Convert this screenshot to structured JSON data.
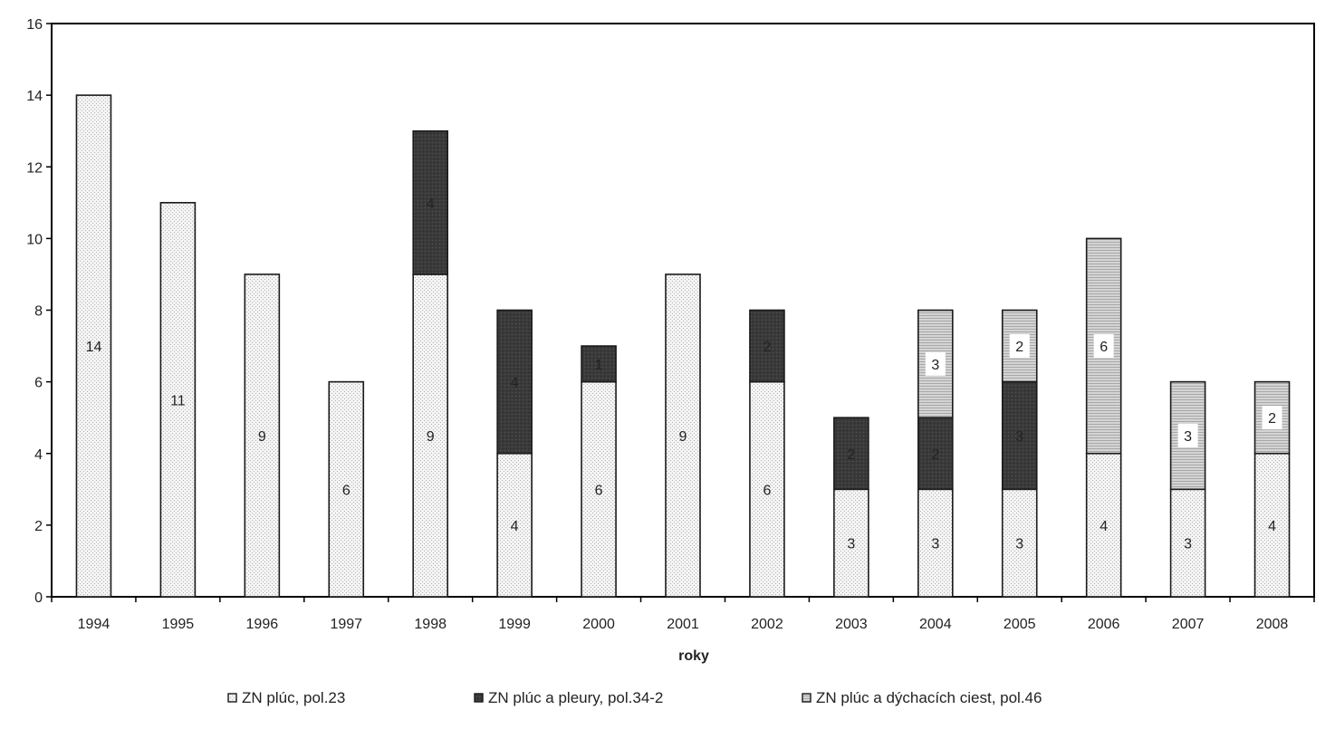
{
  "chart_data": {
    "type": "bar",
    "stacked": true,
    "categories": [
      "1994",
      "1995",
      "1996",
      "1997",
      "1998",
      "1999",
      "2000",
      "2001",
      "2002",
      "2003",
      "2004",
      "2005",
      "2006",
      "2007",
      "2008"
    ],
    "series": [
      {
        "name": "ZN plúc, pol.23",
        "values": [
          14,
          11,
          9,
          6,
          9,
          4,
          6,
          9,
          6,
          3,
          3,
          3,
          4,
          3,
          4
        ],
        "color": "#eeeeee",
        "pattern": "dotted"
      },
      {
        "name": "ZN plúc a pleury, pol.34-2",
        "values": [
          0,
          0,
          0,
          0,
          4,
          4,
          1,
          0,
          2,
          2,
          2,
          3,
          0,
          0,
          0
        ],
        "color": "#3a3a3a",
        "pattern": "dark"
      },
      {
        "name": "ZN plúc a dýchacích ciest, pol.46",
        "values": [
          0,
          0,
          0,
          0,
          0,
          0,
          0,
          0,
          0,
          0,
          3,
          2,
          6,
          3,
          2
        ],
        "color": "#c8c8c8",
        "pattern": "striped"
      }
    ],
    "xlabel": "roky",
    "ylabel": "",
    "ylim": [
      0,
      16
    ],
    "yticks": [
      0,
      2,
      4,
      6,
      8,
      10,
      12,
      14,
      16
    ],
    "grid": false,
    "legend_position": "bottom"
  }
}
